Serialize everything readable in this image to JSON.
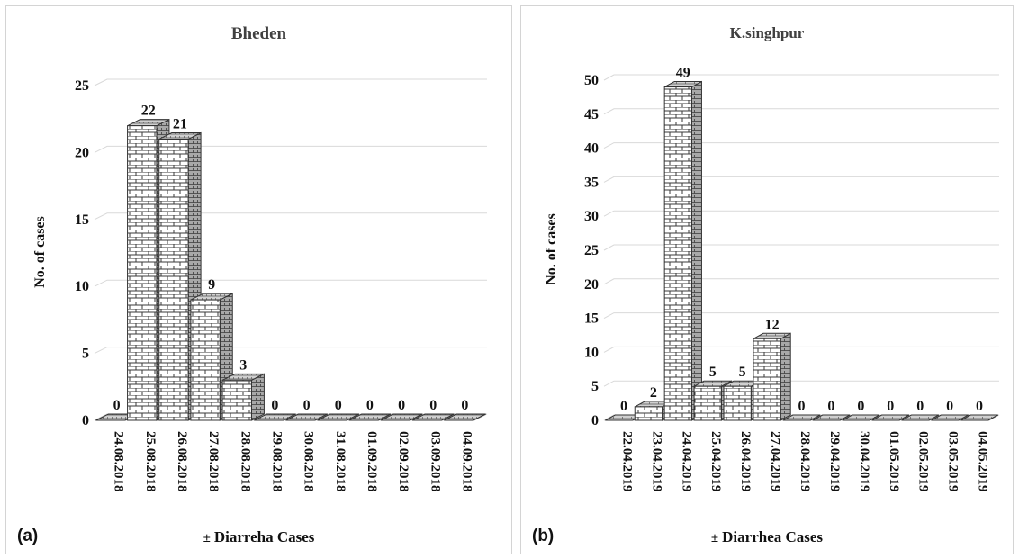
{
  "chart_data": [
    {
      "panel_label": "(a)",
      "type": "bar",
      "title": "Bheden",
      "ylabel": "No. of cases",
      "xlabel": "",
      "legend": "Diarreha Cases",
      "legend_position": "bottom",
      "ylim": [
        0,
        25
      ],
      "yticks": [
        0,
        5,
        10,
        15,
        20,
        25
      ],
      "grid": true,
      "categories": [
        "24.08.2018",
        "25.08.2018",
        "26.08.2018",
        "27.08.2018",
        "28.08.2018",
        "29.08.2018",
        "30.08.2018",
        "31.08.2018",
        "01.09.2018",
        "02.09.2018",
        "03.09.2018",
        "04.09.2018"
      ],
      "series": [
        {
          "name": "Diarreha Cases",
          "values": [
            0,
            22,
            21,
            9,
            3,
            0,
            0,
            0,
            0,
            0,
            0,
            0
          ]
        }
      ]
    },
    {
      "panel_label": "(b)",
      "type": "bar",
      "title": "K.singhpur",
      "ylabel": "No. of cases",
      "xlabel": "",
      "legend": "Diarrhea Cases",
      "legend_position": "bottom",
      "ylim": [
        0,
        50
      ],
      "yticks": [
        0,
        5,
        10,
        15,
        20,
        25,
        30,
        35,
        40,
        45,
        50
      ],
      "grid": true,
      "categories": [
        "22.04.2019",
        "23.04.2019",
        "24.04.2019",
        "25.04.2019",
        "26.04.2019",
        "27.04.2019",
        "28.04.2019",
        "29.04.2019",
        "30.04.2019",
        "01.05.2019",
        "02.05.2019",
        "03.05.2019",
        "04.05.2019"
      ],
      "series": [
        {
          "name": "Diarrhea Cases",
          "values": [
            0,
            2,
            49,
            5,
            5,
            12,
            0,
            0,
            0,
            0,
            0,
            0,
            0
          ]
        }
      ]
    }
  ]
}
